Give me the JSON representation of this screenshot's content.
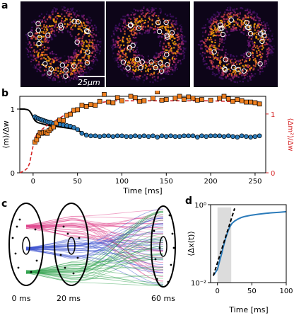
{
  "panel_labels": [
    "a",
    "b",
    "c",
    "d"
  ],
  "panel_a": {
    "scale_bar_label": "25μm"
  },
  "panel_b": {
    "chart_data": {
      "type": "scatter",
      "xlabel": "Time [ms]",
      "ylabel_left": "⟨m⟩/Δw",
      "ylabel_right": "⟨Δm²⟩/Δw",
      "xlim": [
        -15,
        262
      ],
      "ylim_left": [
        0,
        1.2
      ],
      "ylim_right": [
        0,
        1.3
      ],
      "x_ticks": [
        "0",
        "50",
        "100",
        "150",
        "200",
        "250"
      ],
      "x_tick_values": [
        0,
        50,
        100,
        150,
        200,
        250
      ],
      "left_ticks": [
        "0",
        "1"
      ],
      "right_ticks": [
        "0",
        "1"
      ],
      "colors": {
        "blue": "#2b7bba",
        "orange": "#f08020",
        "red_dashed": "#d62728",
        "black": "#000000",
        "right_axis": "#d62728"
      },
      "series": [
        {
          "kind": "points-blue",
          "x": [
            2,
            4,
            6,
            8,
            10,
            12,
            14,
            16,
            18,
            20,
            23,
            26,
            30,
            34,
            38,
            42,
            46,
            50,
            55,
            60,
            65,
            70,
            75,
            80,
            85,
            90,
            95,
            100,
            105,
            110,
            115,
            120,
            125,
            130,
            135,
            140,
            145,
            150,
            155,
            160,
            165,
            170,
            175,
            180,
            185,
            190,
            195,
            200,
            205,
            210,
            215,
            220,
            225,
            230,
            235,
            240,
            245,
            250,
            255
          ],
          "y": [
            0.88,
            0.86,
            0.85,
            0.84,
            0.83,
            0.82,
            0.81,
            0.8,
            0.79,
            0.79,
            0.77,
            0.77,
            0.76,
            0.75,
            0.74,
            0.73,
            0.71,
            0.68,
            0.62,
            0.59,
            0.58,
            0.58,
            0.57,
            0.58,
            0.58,
            0.57,
            0.58,
            0.58,
            0.57,
            0.57,
            0.58,
            0.57,
            0.58,
            0.57,
            0.58,
            0.56,
            0.58,
            0.57,
            0.58,
            0.57,
            0.57,
            0.58,
            0.58,
            0.58,
            0.56,
            0.58,
            0.57,
            0.58,
            0.58,
            0.58,
            0.57,
            0.58,
            0.57,
            0.56,
            0.58,
            0.57,
            0.56,
            0.57,
            0.58
          ]
        },
        {
          "kind": "points-orange",
          "x": [
            2,
            4,
            6,
            8,
            10,
            12,
            14,
            16,
            18,
            20,
            23,
            26,
            30,
            34,
            38,
            42,
            46,
            50,
            55,
            60,
            65,
            70,
            75,
            80,
            85,
            90,
            95,
            100,
            110,
            115,
            120,
            125,
            135,
            140,
            145,
            150,
            160,
            165,
            170,
            175,
            180,
            185,
            190,
            200,
            210,
            215,
            220,
            225,
            230,
            235,
            240,
            245,
            250,
            255
          ],
          "y": [
            0.48,
            0.52,
            0.58,
            0.63,
            0.62,
            0.63,
            0.64,
            0.62,
            0.66,
            0.69,
            0.72,
            0.78,
            0.83,
            0.82,
            0.9,
            0.92,
            0.98,
            0.99,
            1.06,
            1.04,
            1.07,
            1.06,
            1.12,
            1.23,
            1.11,
            1.1,
            1.18,
            1.13,
            1.2,
            1.18,
            1.12,
            1.13,
            1.17,
            1.27,
            1.14,
            1.15,
            1.17,
            1.2,
            1.15,
            1.19,
            1.17,
            1.14,
            1.15,
            1.14,
            1.17,
            1.2,
            1.16,
            1.12,
            1.15,
            1.13,
            1.11,
            1.11,
            1.1,
            1.08
          ]
        },
        {
          "kind": "line-black-solid",
          "x": [
            -15,
            -10,
            -6,
            -4,
            -2,
            0,
            2,
            5,
            10,
            15,
            20,
            25,
            30,
            35,
            40,
            45,
            50,
            55,
            60,
            70,
            80,
            100,
            120,
            140,
            160,
            180,
            200,
            220,
            240,
            255
          ],
          "y": [
            1.0,
            1.0,
            0.99,
            0.97,
            0.93,
            0.87,
            0.82,
            0.79,
            0.77,
            0.75,
            0.74,
            0.73,
            0.72,
            0.71,
            0.7,
            0.69,
            0.67,
            0.63,
            0.59,
            0.57,
            0.57,
            0.57,
            0.57,
            0.57,
            0.57,
            0.57,
            0.57,
            0.57,
            0.57,
            0.57
          ]
        },
        {
          "kind": "line-red-dashed",
          "x": [
            -15,
            -10,
            -6,
            -4,
            -2,
            0,
            2,
            5,
            10,
            15,
            20,
            25,
            30,
            35,
            40,
            45,
            50,
            55,
            60,
            65,
            70,
            80,
            90,
            100,
            120,
            140,
            160,
            180,
            200,
            220,
            240,
            255
          ],
          "y": [
            0.0,
            0.03,
            0.08,
            0.15,
            0.28,
            0.42,
            0.55,
            0.62,
            0.68,
            0.74,
            0.78,
            0.82,
            0.86,
            0.9,
            0.94,
            0.97,
            1.0,
            1.04,
            1.06,
            1.08,
            1.09,
            1.11,
            1.13,
            1.13,
            1.13,
            1.13,
            1.13,
            1.13,
            1.13,
            1.12,
            1.12,
            1.11
          ]
        }
      ]
    }
  },
  "panel_c": {
    "time_labels": [
      "0 ms",
      "20 ms",
      "60 ms"
    ]
  },
  "panel_d": {
    "chart_data": {
      "type": "line",
      "ylabel": "⟨Δx(t)⟩",
      "xlabel": "Time [ms]",
      "scale": "log-y",
      "xlim": [
        -10,
        100
      ],
      "ylim": [
        0.01,
        1.0
      ],
      "x_ticks": [
        "0",
        "50",
        "100"
      ],
      "x_tick_values": [
        0,
        50,
        100
      ],
      "y_ticks": [
        "10⁰",
        "10⁻²"
      ],
      "y_tick_values": [
        1.0,
        0.01
      ],
      "shaded_region": [
        0,
        20
      ],
      "colors": {
        "blue": "#2b7bba",
        "shade": "#dcdcdc"
      },
      "series": [
        {
          "kind": "line-blue",
          "x": [
            -5,
            0,
            3,
            6,
            9,
            12,
            15,
            18,
            21,
            25,
            30,
            35,
            40,
            50,
            60,
            70,
            80,
            90,
            100
          ],
          "y": [
            0.016,
            0.022,
            0.035,
            0.055,
            0.09,
            0.14,
            0.2,
            0.27,
            0.33,
            0.38,
            0.43,
            0.47,
            0.5,
            0.54,
            0.57,
            0.6,
            0.62,
            0.64,
            0.66
          ]
        },
        {
          "kind": "line-black-dashed",
          "x": [
            -6,
            25
          ],
          "y": [
            0.015,
            0.8
          ]
        }
      ]
    }
  }
}
